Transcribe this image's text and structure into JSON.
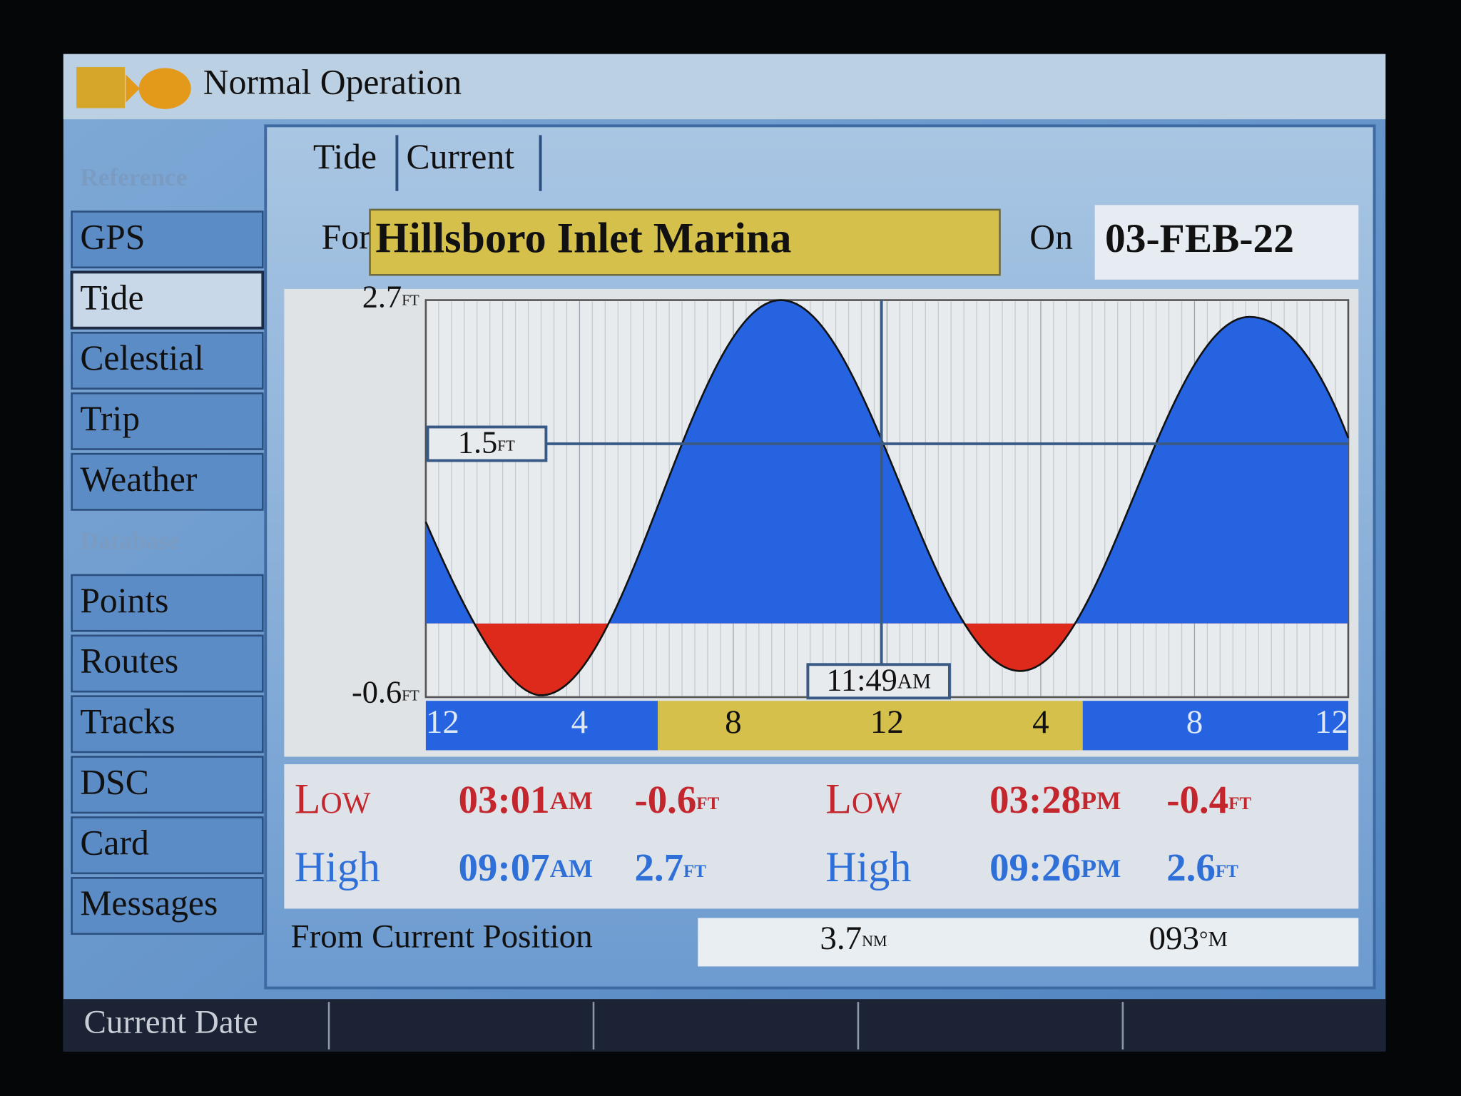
{
  "header": {
    "title": "Normal Operation"
  },
  "sidebar": {
    "sections": [
      {
        "heading": "Reference",
        "items": [
          "GPS",
          "Tide",
          "Celestial",
          "Trip",
          "Weather"
        ]
      },
      {
        "heading": "Database",
        "items": [
          "Points",
          "Routes",
          "Tracks",
          "DSC",
          "Card",
          "Messages"
        ]
      }
    ]
  },
  "tabs": [
    "Tide",
    "Current"
  ],
  "station": {
    "for_label": "For",
    "name": "Hillsboro Inlet Marina",
    "on_label": "On",
    "date": "03-FEB-22"
  },
  "graph": {
    "y_max": {
      "value": 2.7,
      "unit": "ft"
    },
    "y_min": {
      "value": -0.6,
      "unit": "ft"
    },
    "reference": {
      "value": 1.5,
      "unit": "ft"
    },
    "cursor": {
      "time": "11:49",
      "suffix": "AM"
    },
    "hour_labels": [
      "12",
      "4",
      "8",
      "12",
      "4",
      "8",
      "12"
    ]
  },
  "tides": [
    [
      {
        "type": "Low",
        "time": "03:01",
        "suffix": "AM",
        "height": -0.6,
        "unit": "ft",
        "color": "#c4262e"
      },
      {
        "type": "Low",
        "time": "03:28",
        "suffix": "PM",
        "height": -0.4,
        "unit": "ft",
        "color": "#c4262e"
      }
    ],
    [
      {
        "type": "High",
        "time": "09:07",
        "suffix": "AM",
        "height": 2.7,
        "unit": "ft",
        "color": "#2f6fd8"
      },
      {
        "type": "High",
        "time": "09:26",
        "suffix": "PM",
        "height": 2.6,
        "unit": "ft",
        "color": "#2f6fd8"
      }
    ]
  ],
  "position": {
    "label": "From Current Position",
    "distance": {
      "value": 3.7,
      "unit": "nm"
    },
    "bearing": {
      "value": "093",
      "unit": "°M"
    }
  },
  "softkeys": [
    "Current Date"
  ]
}
